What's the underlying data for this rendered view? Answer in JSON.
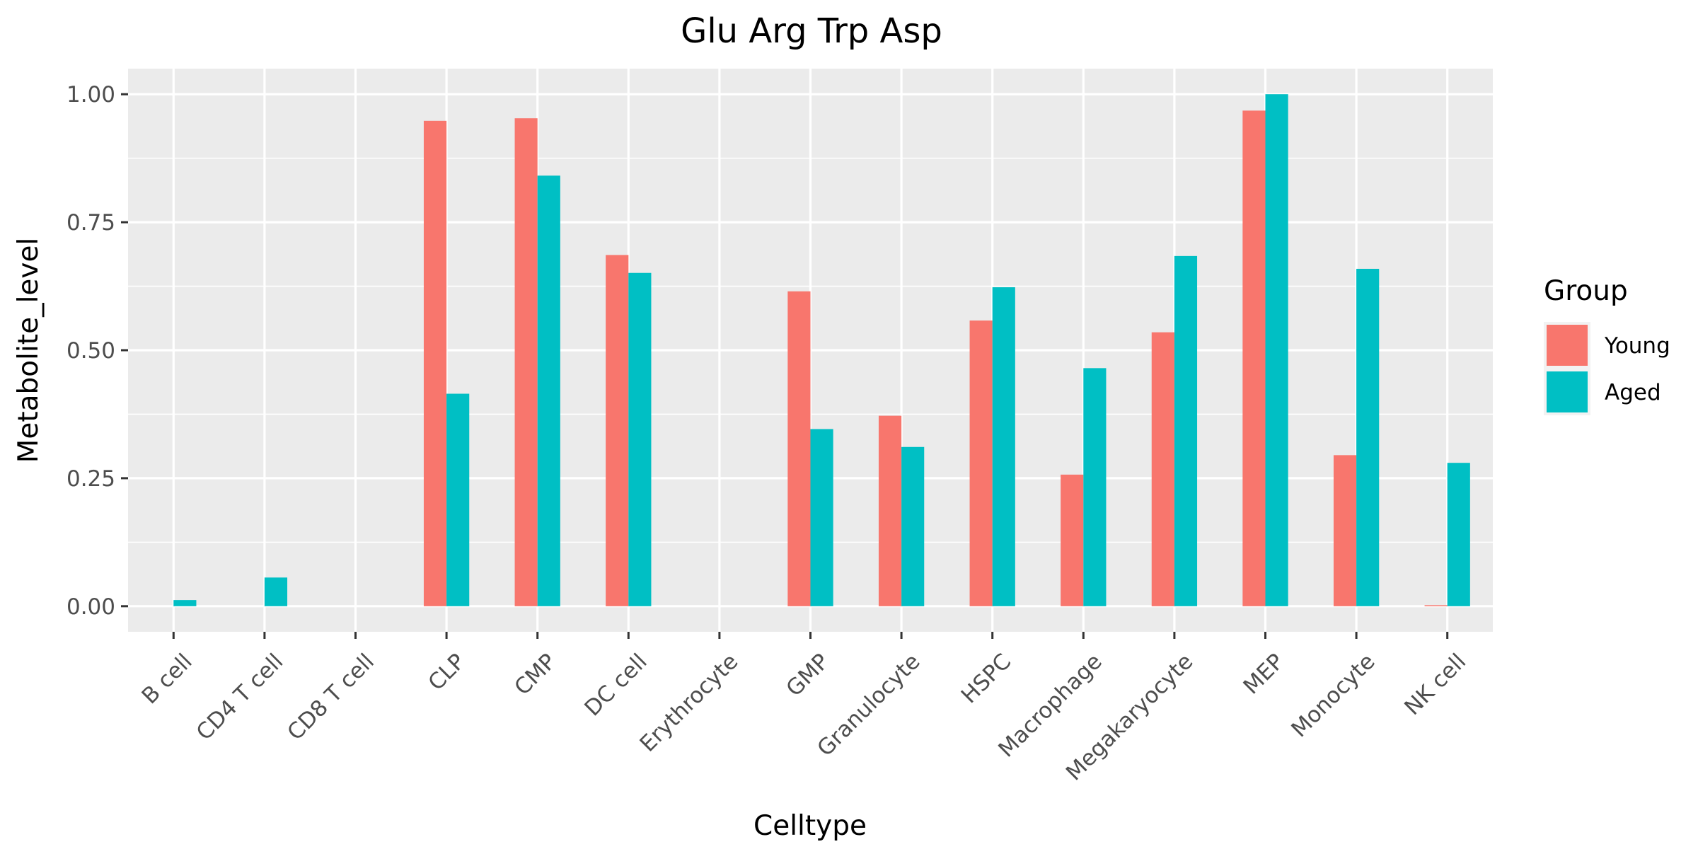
{
  "chart_data": {
    "type": "bar",
    "title": "Glu Arg Trp Asp",
    "xlabel": "Celltype",
    "ylabel": "Metabolite_level",
    "categories": [
      "B cell",
      "CD4 T cell",
      "CD8 T cell",
      "CLP",
      "CMP",
      "DC cell",
      "Erythrocyte",
      "GMP",
      "Granulocyte",
      "HSPC",
      "Macrophage",
      "Megakaryocyte",
      "MEP",
      "Monocyte",
      "NK cell"
    ],
    "series": [
      {
        "name": "Young",
        "color": "#F8766D",
        "values": [
          0,
          0,
          0,
          0.948,
          0.953,
          0.686,
          0,
          0.615,
          0.372,
          0.558,
          0.257,
          0.535,
          0.968,
          0.295,
          0.002
        ]
      },
      {
        "name": "Aged",
        "color": "#00BFC4",
        "values": [
          0.012,
          0.056,
          0,
          0.415,
          0.841,
          0.651,
          0,
          0.346,
          0.311,
          0.623,
          0.465,
          0.684,
          1.0,
          0.659,
          0.28
        ]
      }
    ],
    "ylim": [
      -0.05,
      1.05
    ],
    "yticks": [
      0,
      0.25,
      0.5,
      0.75,
      1.0
    ],
    "ytick_labels": [
      "0.00",
      "0.25",
      "0.50",
      "0.75",
      "1.00"
    ],
    "legend": {
      "title": "Group",
      "position": "right"
    },
    "grid": true,
    "panel_background": "#EBEBEB"
  }
}
